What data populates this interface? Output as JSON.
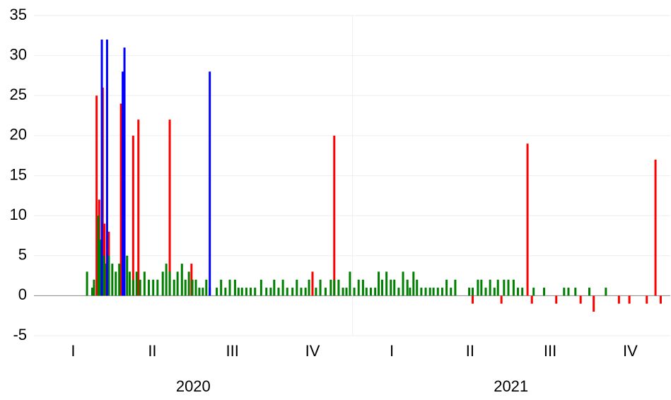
{
  "chart_data": {
    "type": "bar",
    "xlim": [
      0,
      731
    ],
    "ylim": [
      -5,
      35
    ],
    "yticks": [
      -5,
      0,
      5,
      10,
      15,
      20,
      25,
      30,
      35
    ],
    "grid": true,
    "xticks": [
      {
        "value": 45,
        "label": "I"
      },
      {
        "value": 136,
        "label": "II"
      },
      {
        "value": 228,
        "label": "III"
      },
      {
        "value": 320,
        "label": "IV"
      },
      {
        "value": 411,
        "label": "I"
      },
      {
        "value": 501,
        "label": "II"
      },
      {
        "value": 593,
        "label": "III"
      },
      {
        "value": 685,
        "label": "IV"
      }
    ],
    "year_labels": [
      {
        "value": 183,
        "label": "2020"
      },
      {
        "value": 548,
        "label": "2021"
      }
    ],
    "x_gridlines": [
      366
    ],
    "series": [
      {
        "color": "#ff0000",
        "x": [
          72,
          75,
          79,
          81,
          86,
          100,
          114,
          120,
          156,
          181,
          320,
          345,
          567,
          714,
          504,
          537,
          572,
          600,
          628,
          643,
          672,
          684,
          704,
          720
        ],
        "values": [
          25,
          12,
          26,
          9,
          8,
          24,
          20,
          22,
          22,
          4,
          3,
          20,
          19,
          17,
          -1,
          -1,
          -1,
          -1,
          -1,
          -2,
          -1,
          -1,
          -1,
          -1
        ]
      },
      {
        "color": "#008000",
        "x": [
          61,
          67,
          69,
          74,
          76,
          80,
          83,
          86,
          90,
          94,
          98,
          103,
          107,
          110,
          114,
          118,
          122,
          127,
          132,
          137,
          142,
          148,
          152,
          156,
          161,
          165,
          170,
          174,
          178,
          182,
          186,
          190,
          194,
          198,
          202,
          210,
          215,
          220,
          225,
          231,
          235,
          239,
          244,
          249,
          254,
          261,
          267,
          272,
          276,
          281,
          286,
          291,
          297,
          302,
          307,
          312,
          316,
          324,
          329,
          335,
          341,
          345,
          350,
          355,
          359,
          363,
          368,
          373,
          378,
          382,
          387,
          392,
          396,
          400,
          405,
          410,
          414,
          419,
          424,
          429,
          432,
          436,
          440,
          445,
          450,
          455,
          459,
          464,
          469,
          474,
          479,
          484,
          500,
          504,
          510,
          514,
          519,
          524,
          529,
          533,
          540,
          545,
          551,
          556,
          561,
          574,
          586,
          609,
          614,
          622,
          638,
          657
        ],
        "values": [
          3,
          1,
          2,
          10,
          7,
          5,
          4,
          5,
          4,
          3,
          4,
          4,
          5,
          3,
          2,
          3,
          2,
          3,
          2,
          2,
          2,
          3,
          4,
          3,
          2,
          3,
          4,
          2,
          3,
          2,
          2,
          1,
          1,
          2,
          1,
          1,
          2,
          1,
          2,
          2,
          1,
          1,
          1,
          1,
          1,
          2,
          1,
          1,
          2,
          1,
          2,
          1,
          1,
          2,
          1,
          1,
          2,
          1,
          2,
          1,
          2,
          2,
          2,
          1,
          1,
          3,
          1,
          2,
          2,
          1,
          1,
          1,
          3,
          2,
          3,
          2,
          2,
          1,
          3,
          2,
          1,
          3,
          2,
          1,
          1,
          1,
          1,
          1,
          1,
          2,
          1,
          2,
          1,
          1,
          2,
          2,
          1,
          2,
          1,
          2,
          2,
          2,
          2,
          1,
          1,
          1,
          1,
          1,
          1,
          1,
          1,
          1
        ]
      },
      {
        "color": "#0000ff",
        "x": [
          78,
          84,
          102,
          104,
          202
        ],
        "values": [
          32,
          32,
          28,
          31,
          28
        ]
      }
    ]
  }
}
